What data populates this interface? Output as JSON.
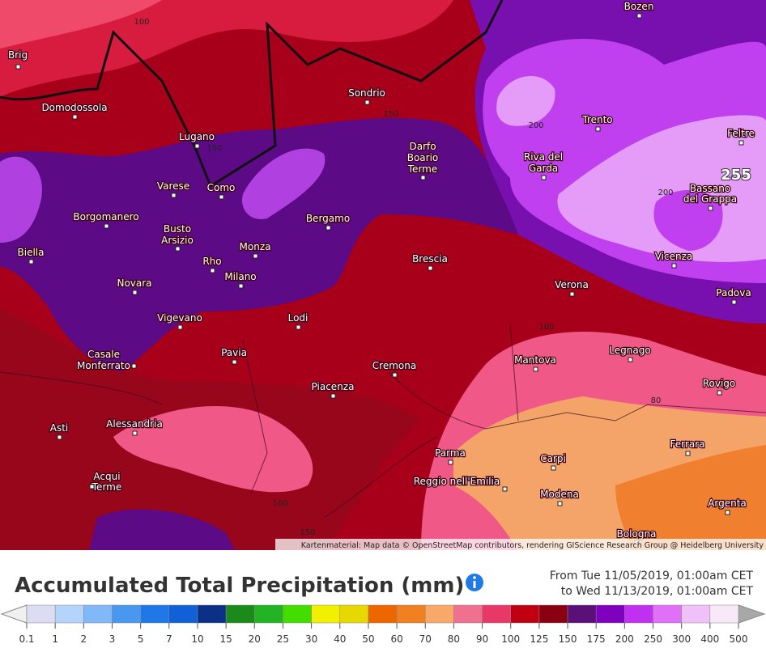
{
  "map": {
    "cities": [
      {
        "lines": [
          "Brig"
        ]
      },
      {
        "lines": [
          "Domodossola"
        ]
      },
      {
        "lines": [
          "Lugano"
        ]
      },
      {
        "lines": [
          "Sondrio"
        ]
      },
      {
        "lines": [
          "Bozen"
        ]
      },
      {
        "lines": [
          "Trento"
        ]
      },
      {
        "lines": [
          "Feltre"
        ]
      },
      {
        "lines": [
          "Darfo",
          "Boario",
          "Terme"
        ]
      },
      {
        "lines": [
          "Riva del",
          "Garda"
        ]
      },
      {
        "lines": [
          "Varese"
        ]
      },
      {
        "lines": [
          "Como"
        ]
      },
      {
        "lines": [
          "Bassano",
          "del Grappa"
        ]
      },
      {
        "lines": [
          "Borgomanero"
        ]
      },
      {
        "lines": [
          "Bergamo"
        ]
      },
      {
        "lines": [
          "Busto",
          "Arsizio"
        ]
      },
      {
        "lines": [
          "Biella"
        ]
      },
      {
        "lines": [
          "Monza"
        ]
      },
      {
        "lines": [
          "Brescia"
        ]
      },
      {
        "lines": [
          "Rho"
        ]
      },
      {
        "lines": [
          "Vicenza"
        ]
      },
      {
        "lines": [
          "Milano"
        ]
      },
      {
        "lines": [
          "Novara"
        ]
      },
      {
        "lines": [
          "Verona"
        ]
      },
      {
        "lines": [
          "Padova"
        ]
      },
      {
        "lines": [
          "Vigevano"
        ]
      },
      {
        "lines": [
          "Lodi"
        ]
      },
      {
        "lines": [
          "Casale",
          "Monferrato"
        ]
      },
      {
        "lines": [
          "Pavia"
        ]
      },
      {
        "lines": [
          "Mantova"
        ]
      },
      {
        "lines": [
          "Legnago"
        ]
      },
      {
        "lines": [
          "Cremona"
        ]
      },
      {
        "lines": [
          "Piacenza"
        ]
      },
      {
        "lines": [
          "Rovigo"
        ]
      },
      {
        "lines": [
          "Alessandria"
        ]
      },
      {
        "lines": [
          "Asti"
        ]
      },
      {
        "lines": [
          "Ferrara"
        ]
      },
      {
        "lines": [
          "Parma"
        ]
      },
      {
        "lines": [
          "Carpi"
        ]
      },
      {
        "lines": [
          "Acqui",
          "Terme"
        ]
      },
      {
        "lines": [
          "Reggio nell'Emilia"
        ]
      },
      {
        "lines": [
          "Modena"
        ]
      },
      {
        "lines": [
          "Argenta"
        ]
      },
      {
        "lines": [
          "Bologna"
        ]
      }
    ],
    "contour_labels": [
      "100",
      "150",
      "150",
      "200",
      "200",
      "100",
      "80",
      "100",
      "150"
    ],
    "max_label": "255",
    "attribution": "Kartenmaterial: Map data © OpenStreetMap contributors, rendering GIScience Research Group @ Heidelberg University"
  },
  "title": "Accumulated Total Precipitation (mm)",
  "time_range": {
    "from": "From Tue 11/05/2019, 01:00am CET",
    "to": "to Wed 11/13/2019, 01:00am CET"
  },
  "legend": {
    "labels": [
      0.1,
      1,
      2,
      3,
      5,
      7,
      10,
      15,
      20,
      25,
      30,
      40,
      50,
      60,
      70,
      80,
      90,
      100,
      125,
      150,
      175,
      200,
      250,
      300,
      400,
      500
    ],
    "colors": [
      "#dcdcf2",
      "#b4d4fa",
      "#80b8f8",
      "#4898f0",
      "#1e78e8",
      "#1060d8",
      "#0a3088",
      "#1a8a1a",
      "#22b422",
      "#44dd00",
      "#f0f000",
      "#e6d800",
      "#ee6600",
      "#f08020",
      "#f8a868",
      "#f07090",
      "#e83868",
      "#c00010",
      "#8a0010",
      "#5a1078",
      "#8000c0",
      "#c030f0",
      "#e070f8",
      "#f0c0f8",
      "#f8e8f8"
    ]
  }
}
